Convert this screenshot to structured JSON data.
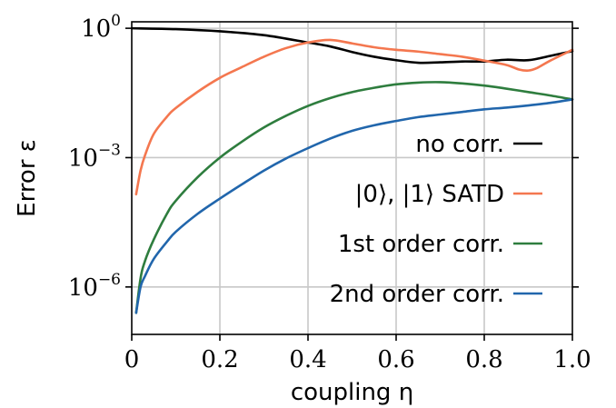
{
  "chart_data": {
    "type": "line",
    "xlabel": "coupling η",
    "ylabel": "Error ε",
    "xlim": [
      0.0,
      1.0
    ],
    "ylim_log10": [
      -7.1,
      0.15
    ],
    "y_scale": "log",
    "grid": true,
    "legend_position": "lower-right",
    "x_ticks": [
      {
        "value": 0.0,
        "label": "0"
      },
      {
        "value": 0.2,
        "label": "0.2"
      },
      {
        "value": 0.4,
        "label": "0.4"
      },
      {
        "value": 0.6,
        "label": "0.6"
      },
      {
        "value": 0.8,
        "label": "0.8"
      },
      {
        "value": 1.0,
        "label": "1.0"
      }
    ],
    "y_ticks": [
      {
        "value_log10": 0,
        "base": "10",
        "exp": "0"
      },
      {
        "value_log10": -3,
        "base": "10",
        "exp": "−3"
      },
      {
        "value_log10": -6,
        "base": "10",
        "exp": "−6"
      }
    ],
    "series": [
      {
        "name": "no corr.",
        "color": "#000000",
        "x": [
          0.0,
          0.1,
          0.2,
          0.3,
          0.4,
          0.45,
          0.5,
          0.55,
          0.6,
          0.65,
          0.7,
          0.75,
          0.8,
          0.85,
          0.9,
          0.95,
          1.0
        ],
        "log10_y": [
          0.0,
          -0.02,
          -0.07,
          -0.16,
          -0.33,
          -0.42,
          -0.55,
          -0.66,
          -0.74,
          -0.8,
          -0.79,
          -0.77,
          -0.77,
          -0.73,
          -0.74,
          -0.64,
          -0.53
        ]
      },
      {
        "name": "|0⟩, |1⟩ SATD",
        "color": "#f4774f",
        "x": [
          0.01,
          0.02,
          0.03,
          0.05,
          0.08,
          0.1,
          0.15,
          0.2,
          0.25,
          0.3,
          0.35,
          0.4,
          0.45,
          0.5,
          0.55,
          0.6,
          0.65,
          0.7,
          0.75,
          0.8,
          0.85,
          0.88,
          0.9,
          0.92,
          0.95,
          1.0
        ],
        "log10_y": [
          -3.85,
          -3.3,
          -2.95,
          -2.45,
          -2.05,
          -1.85,
          -1.47,
          -1.15,
          -0.9,
          -0.66,
          -0.46,
          -0.33,
          -0.27,
          -0.35,
          -0.44,
          -0.5,
          -0.54,
          -0.6,
          -0.66,
          -0.75,
          -0.85,
          -0.96,
          -0.98,
          -0.92,
          -0.75,
          -0.5
        ]
      },
      {
        "name": "1st order corr.",
        "color": "#2e7d3e",
        "x": [
          0.01,
          0.02,
          0.03,
          0.05,
          0.08,
          0.1,
          0.15,
          0.2,
          0.25,
          0.3,
          0.35,
          0.4,
          0.45,
          0.5,
          0.55,
          0.6,
          0.65,
          0.7,
          0.75,
          0.8,
          0.85,
          0.9,
          0.95,
          1.0
        ],
        "log10_y": [
          -6.6,
          -5.8,
          -5.4,
          -4.9,
          -4.3,
          -4.0,
          -3.45,
          -3.0,
          -2.63,
          -2.3,
          -2.03,
          -1.8,
          -1.62,
          -1.48,
          -1.38,
          -1.3,
          -1.26,
          -1.25,
          -1.28,
          -1.33,
          -1.4,
          -1.48,
          -1.56,
          -1.65
        ]
      },
      {
        "name": "2nd order corr.",
        "color": "#2166ac",
        "x": [
          0.01,
          0.02,
          0.03,
          0.05,
          0.08,
          0.1,
          0.15,
          0.2,
          0.25,
          0.3,
          0.35,
          0.4,
          0.45,
          0.5,
          0.55,
          0.6,
          0.65,
          0.7,
          0.75,
          0.8,
          0.85,
          0.9,
          0.95,
          1.0
        ],
        "log10_y": [
          -6.6,
          -6.0,
          -5.75,
          -5.35,
          -4.95,
          -4.72,
          -4.3,
          -3.95,
          -3.62,
          -3.3,
          -3.02,
          -2.78,
          -2.56,
          -2.38,
          -2.25,
          -2.15,
          -2.06,
          -2.0,
          -1.94,
          -1.88,
          -1.84,
          -1.79,
          -1.73,
          -1.65
        ]
      }
    ],
    "legend": [
      {
        "label": "no corr.",
        "color": "#000000"
      },
      {
        "label": "|0⟩, |1⟩ SATD",
        "color": "#f4774f"
      },
      {
        "label": "1st order corr.",
        "color": "#2e7d3e"
      },
      {
        "label": "2nd order corr.",
        "color": "#2166ac"
      }
    ]
  }
}
